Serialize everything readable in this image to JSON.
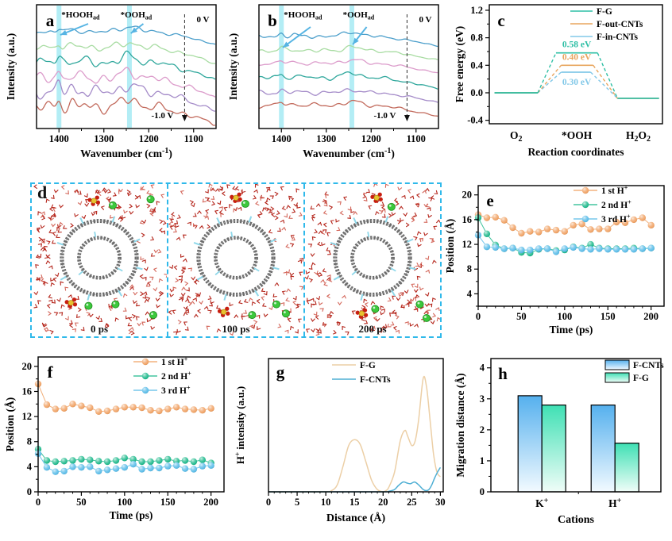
{
  "figure": {
    "background": "#ffffff"
  },
  "panels": {
    "a": {
      "letter": "a",
      "xlabel": "Wavenumber (cm^{-1})",
      "ylabel": "Intensity (a.u.)",
      "ann_hooh": "*HOOH_{ad}",
      "ann_ooh": "*OOH_{ad}",
      "v_top": "0 V",
      "v_bottom": "-1.0 V",
      "band_color": "#A0E9F2",
      "arrow_color": "#56B4E3",
      "series": [
        {
          "name": "spectrum-1-top",
          "color": "#4C9FCB",
          "base": 34,
          "amp": 2.2,
          "p1": 5,
          "p2": 7,
          "drop": 16,
          "seed": 3
        },
        {
          "name": "spectrum-2",
          "color": "#A8DCA2",
          "base": 54,
          "amp": 3.2,
          "p1": 7,
          "p2": 6,
          "drop": 20,
          "seed": 5
        },
        {
          "name": "spectrum-3",
          "color": "#2FA79C",
          "base": 73,
          "amp": 4.2,
          "p1": 9,
          "p2": 8,
          "drop": 22,
          "seed": 7
        },
        {
          "name": "spectrum-4",
          "color": "#DC9CCB",
          "base": 93,
          "amp": 4.8,
          "p1": 10,
          "p2": 9,
          "drop": 24,
          "seed": 9
        },
        {
          "name": "spectrum-5",
          "color": "#A58CC9",
          "base": 110,
          "amp": 5.2,
          "p1": 11,
          "p2": 8,
          "drop": 24,
          "seed": 11
        },
        {
          "name": "spectrum-6-bottom",
          "color": "#C26A5C",
          "base": 129,
          "amp": 5.2,
          "p1": 10,
          "p2": 10,
          "drop": 22,
          "seed": 13
        }
      ]
    },
    "b": {
      "letter": "b",
      "xlabel": "Wavenumber (cm^{-1})",
      "ylabel": "Intensity (a.u.)",
      "ann_hooh": "*HOOH_{ad}",
      "ann_ooh": "*OOH_{ad}",
      "v_top": "0 V",
      "v_bottom": "-1.0 V",
      "band_color": "#A0E9F2",
      "arrow_color": "#56B4E3",
      "series": [
        {
          "name": "spectrum-1-top",
          "color": "#4C9FCB",
          "base": 40,
          "amp": 1.6,
          "p1": 4,
          "p2": 6,
          "drop": 12,
          "seed": 21
        },
        {
          "name": "spectrum-2",
          "color": "#A8DCA2",
          "base": 58,
          "amp": 1.8,
          "p1": 4,
          "p2": 5,
          "drop": 12,
          "seed": 23
        },
        {
          "name": "spectrum-3",
          "color": "#DC9CCB",
          "base": 74,
          "amp": 1.8,
          "p1": 4,
          "p2": 5,
          "drop": 12,
          "seed": 25
        },
        {
          "name": "spectrum-4",
          "color": "#2FA79C",
          "base": 92,
          "amp": 2.0,
          "p1": 5,
          "p2": 6,
          "drop": 14,
          "seed": 27
        },
        {
          "name": "spectrum-5",
          "color": "#A58CC9",
          "base": 111,
          "amp": 1.8,
          "p1": 4,
          "p2": 4,
          "drop": 12,
          "seed": 29
        },
        {
          "name": "spectrum-6-bottom",
          "color": "#C26A5C",
          "base": 127,
          "amp": 2.0,
          "p1": 5,
          "p2": 5,
          "drop": 14,
          "seed": 31
        }
      ]
    },
    "c": {
      "letter": "c",
      "xlabel": "Reaction coordinates",
      "ylabel": "Free energy (eV)",
      "stages": [
        "O_{2}",
        "*OOH",
        "H_{2}O_{2}"
      ],
      "series": [
        {
          "name": "F-G",
          "color": "#2EBFA5",
          "barrier_label": "0.58 eV"
        },
        {
          "name": "F-out-CNTs",
          "color": "#E8A55E",
          "barrier_label": "0.40 eV"
        },
        {
          "name": "F-in-CNTs",
          "color": "#82C8E8",
          "barrier_label": "0.30 eV"
        }
      ]
    },
    "d": {
      "letter": "d",
      "border_color": "#2FB9EA",
      "snapshots": [
        {
          "label": "0 ps",
          "seed": 101,
          "greens": [
            [
              0.6,
              0.14
            ],
            [
              0.88,
              0.1
            ],
            [
              0.42,
              0.8
            ],
            [
              0.62,
              0.79
            ],
            [
              0.9,
              0.86
            ]
          ],
          "clusters": [
            [
              0.46,
              0.11
            ],
            [
              0.29,
              0.78
            ]
          ]
        },
        {
          "label": "100 ps",
          "seed": 202,
          "greens": [
            [
              0.57,
              0.13
            ],
            [
              0.62,
              0.86
            ],
            [
              0.8,
              0.79
            ],
            [
              0.87,
              0.85
            ]
          ],
          "clusters": [
            [
              0.5,
              0.09
            ],
            [
              0.41,
              0.84
            ]
          ]
        },
        {
          "label": "200 ps",
          "seed": 303,
          "greens": [
            [
              0.64,
              0.15
            ],
            [
              0.52,
              0.82
            ],
            [
              0.85,
              0.79
            ],
            [
              0.9,
              0.88
            ]
          ],
          "clusters": [
            [
              0.53,
              0.09
            ],
            [
              0.42,
              0.85
            ]
          ]
        }
      ]
    },
    "e": {
      "letter": "e",
      "xlabel": "Time (ps)",
      "ylabel": "Position (Å)",
      "legend": [
        "1 st H^{+}",
        "2 nd H^{+}",
        "3 rd H^{+}"
      ],
      "colors": [
        "#F0A264",
        "#1FB98C",
        "#5ABCE8"
      ]
    },
    "f": {
      "letter": "f",
      "xlabel": "Time (ps)",
      "ylabel": "Position (Å)",
      "legend": [
        "1 st H^{+}",
        "2 nd H^{+}",
        "3 rd H^{+}"
      ],
      "colors": [
        "#F0A264",
        "#1FB98C",
        "#5ABCE8"
      ]
    },
    "g": {
      "letter": "g",
      "xlabel": "Distance (Å)",
      "ylabel": "H^{+} intensity (a.u.)",
      "legend": [
        "F-G",
        "F-CNTs"
      ],
      "colors": [
        "#ECCFA6",
        "#4FAFD4"
      ]
    },
    "h": {
      "letter": "h",
      "xlabel": "Cations",
      "ylabel": "Migration distance (Å)",
      "categories": [
        "K^{+}",
        "H^{+}"
      ],
      "legend": [
        "F-CNTs",
        "F-G"
      ],
      "gradients": [
        {
          "top": "#55B0EE",
          "bottom": "#F2FAFF"
        },
        {
          "top": "#3FE0B4",
          "bottom": "#F0FDF8"
        }
      ]
    }
  },
  "chart_data": [
    {
      "panel": "a",
      "type": "line",
      "xlabel": "Wavenumber (cm-1)",
      "ylabel": "Intensity (a.u.)",
      "x_range": [
        1450,
        1050
      ],
      "x_ticks": [
        1400,
        1300,
        1200,
        1100
      ],
      "x_minor_step": 50,
      "highlight_bands": [
        1400,
        1243
      ],
      "dashed_line_x": 1120,
      "potential_top": "0 V",
      "potential_bottom": "-1.0 V",
      "annotations": [
        "*HOOHad band near 1400 cm-1",
        "*OOHad band near 1243 cm-1"
      ],
      "n_spectra": 6,
      "note": "stacked in-situ spectra from 0 V (top) to -1.0 V (bottom); intensity qualitative"
    },
    {
      "panel": "b",
      "type": "line",
      "xlabel": "Wavenumber (cm-1)",
      "ylabel": "Intensity (a.u.)",
      "x_range": [
        1450,
        1050
      ],
      "x_ticks": [
        1400,
        1300,
        1200,
        1100
      ],
      "x_minor_step": 50,
      "highlight_bands": [
        1400,
        1243
      ],
      "dashed_line_x": 1120,
      "potential_top": "0 V",
      "potential_bottom": "-1.0 V",
      "annotations": [
        "*HOOHad band near 1400 cm-1",
        "*OOHad band near 1243 cm-1"
      ],
      "n_spectra": 6,
      "note": "stacked in-situ spectra from 0 V (top) to -1.0 V (bottom); weaker features than panel a"
    },
    {
      "panel": "c",
      "type": "line",
      "xlabel": "Reaction coordinates",
      "ylabel": "Free energy (eV)",
      "ylim": [
        -0.4,
        1.2
      ],
      "yticks": [
        -0.4,
        0.0,
        0.4,
        0.8,
        1.2
      ],
      "categories": [
        "O2",
        "*OOH",
        "H2O2"
      ],
      "series": [
        {
          "name": "F-G",
          "values": [
            0,
            0.58,
            -0.08
          ]
        },
        {
          "name": "F-out-CNTs",
          "values": [
            0,
            0.4,
            -0.08
          ]
        },
        {
          "name": "F-in-CNTs",
          "values": [
            0,
            0.3,
            -0.08
          ]
        }
      ],
      "barrier_labels": [
        "0.58 eV",
        "0.40 eV",
        "0.30 eV"
      ],
      "legend_position": "top-right"
    },
    {
      "panel": "e",
      "type": "scatter",
      "xlabel": "Time (ps)",
      "ylabel": "Position (Å)",
      "xlim": [
        0,
        215
      ],
      "ylim": [
        2,
        21.5
      ],
      "xticks": [
        0,
        50,
        100,
        150,
        200
      ],
      "yticks": [
        4,
        8,
        12,
        16,
        20
      ],
      "x": [
        0,
        10,
        20,
        30,
        40,
        50,
        60,
        70,
        80,
        90,
        100,
        110,
        120,
        130,
        140,
        150,
        160,
        170,
        180,
        190,
        200
      ],
      "series": [
        {
          "name": "1st H+",
          "values": [
            16.8,
            16.3,
            16.4,
            15.9,
            14.7,
            13.8,
            14.1,
            14.0,
            14.5,
            14.3,
            14.1,
            15.1,
            15.3,
            14.4,
            14.5,
            14.5,
            15.6,
            15.5,
            16.0,
            16.3,
            15.1
          ]
        },
        {
          "name": "2nd H+",
          "values": [
            16.3,
            13.7,
            11.9,
            11.3,
            11.4,
            10.7,
            10.6,
            11.2,
            11.3,
            11.0,
            11.1,
            11.6,
            11.4,
            12.0,
            11.4,
            11.3,
            11.3,
            11.3,
            11.4,
            11.3,
            11.4
          ]
        },
        {
          "name": "3rd H+",
          "values": [
            13.5,
            11.6,
            11.5,
            11.3,
            11.4,
            11.1,
            11.1,
            11.3,
            11.3,
            10.8,
            11.3,
            11.5,
            11.3,
            11.2,
            11.3,
            11.2,
            11.2,
            11.2,
            11.2,
            11.3,
            11.4
          ]
        }
      ],
      "legend_position": "top-right"
    },
    {
      "panel": "f",
      "type": "scatter",
      "xlabel": "Time (ps)",
      "ylabel": "Position (Å)",
      "xlim": [
        0,
        215
      ],
      "ylim": [
        0,
        21.5
      ],
      "xticks": [
        0,
        50,
        100,
        150,
        200
      ],
      "yticks": [
        0,
        4,
        8,
        12,
        16,
        20
      ],
      "x": [
        0,
        10,
        20,
        30,
        40,
        50,
        60,
        70,
        80,
        90,
        100,
        110,
        120,
        130,
        140,
        150,
        160,
        170,
        180,
        190,
        200
      ],
      "series": [
        {
          "name": "1st H+",
          "values": [
            17.2,
            13.9,
            13.2,
            13.3,
            14.0,
            13.7,
            13.4,
            12.8,
            12.9,
            13.2,
            13.5,
            13.5,
            13.4,
            13.0,
            12.9,
            13.2,
            13.5,
            13.2,
            13.1,
            13.0,
            13.3
          ]
        },
        {
          "name": "2nd H+",
          "values": [
            6.8,
            5.0,
            4.8,
            4.9,
            5.0,
            5.2,
            5.1,
            4.9,
            4.8,
            5.0,
            5.4,
            5.2,
            4.8,
            4.8,
            5.0,
            5.2,
            4.9,
            5.0,
            4.8,
            5.1,
            4.6
          ]
        },
        {
          "name": "3rd H+",
          "values": [
            6.1,
            3.9,
            3.2,
            3.3,
            4.0,
            3.9,
            4.0,
            3.3,
            3.5,
            3.7,
            3.9,
            4.4,
            3.6,
            3.8,
            3.8,
            4.1,
            4.2,
            3.7,
            3.6,
            4.1,
            4.2
          ]
        }
      ],
      "legend_position": "top-right"
    },
    {
      "panel": "g",
      "type": "line",
      "xlabel": "Distance (Å)",
      "ylabel": "H+ intensity (a.u.)",
      "xlim": [
        0,
        30.5
      ],
      "ylim": [
        0,
        1.15
      ],
      "xticks": [
        0,
        5,
        10,
        15,
        20,
        25,
        30
      ],
      "x_minor_step": 1,
      "series": [
        {
          "name": "F-G",
          "x": [
            0,
            5,
            10,
            11,
            12,
            13,
            14,
            15,
            16,
            17,
            18,
            19,
            20,
            20.5,
            21,
            22,
            23,
            23.8,
            24.3,
            25,
            25.6,
            26.2,
            27,
            27.6,
            28.2,
            28.8,
            29.4,
            30
          ],
          "y": [
            0,
            0,
            0,
            0.01,
            0.06,
            0.22,
            0.4,
            0.45,
            0.41,
            0.26,
            0.1,
            0.02,
            0,
            0.01,
            0.04,
            0.17,
            0.44,
            0.53,
            0.48,
            0.4,
            0.44,
            0.62,
            0.98,
            0.9,
            0.62,
            0.33,
            0.17,
            0.13
          ]
        },
        {
          "name": "F-CNTs",
          "x": [
            0,
            10,
            20,
            21,
            22,
            22.7,
            23.5,
            24.2,
            24.8,
            25.5,
            26.2,
            27,
            27.5,
            28,
            28.5,
            29,
            29.5,
            30
          ],
          "y": [
            0,
            0,
            0,
            0.005,
            0.02,
            0.055,
            0.085,
            0.075,
            0.07,
            0.085,
            0.06,
            0.02,
            0.01,
            0.02,
            0.06,
            0.12,
            0.17,
            0.21
          ]
        }
      ],
      "legend_position": "top-right"
    },
    {
      "panel": "h",
      "type": "bar",
      "xlabel": "Cations",
      "ylabel": "Migration distance (Å)",
      "ylim": [
        0,
        4.3
      ],
      "yticks": [
        0,
        1,
        2,
        3,
        4
      ],
      "categories": [
        "K+",
        "H+"
      ],
      "series": [
        {
          "name": "F-CNTs",
          "values": [
            3.1,
            2.8
          ]
        },
        {
          "name": "F-G",
          "values": [
            2.8,
            1.57
          ]
        }
      ],
      "legend_position": "top-right"
    }
  ]
}
